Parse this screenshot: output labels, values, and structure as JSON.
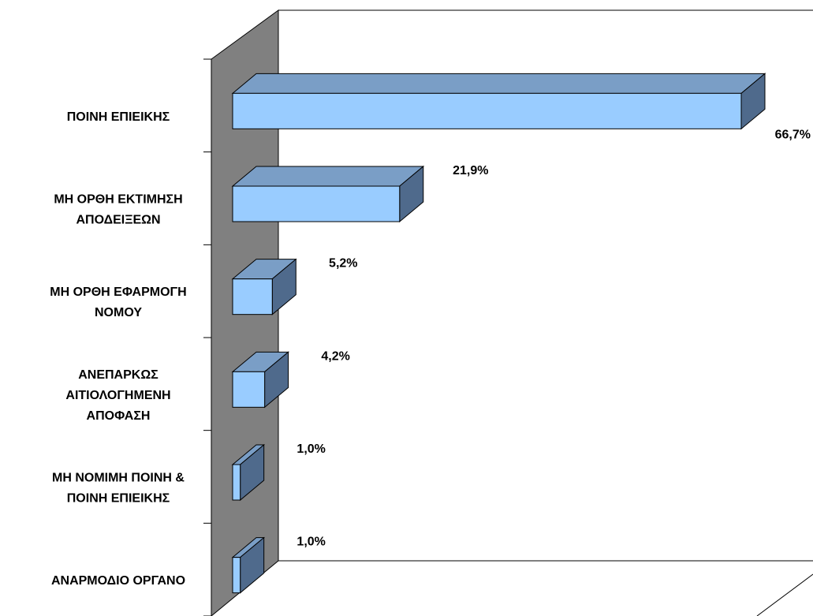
{
  "chart_data": {
    "type": "bar",
    "orientation": "horizontal",
    "three_d": true,
    "title": "",
    "xlabel": "",
    "ylabel": "",
    "categories": [
      [
        "ΠΟΙΝΗ ΕΠΙΕΙΚΗΣ"
      ],
      [
        "ΜΗ ΟΡΘΗ  ΕΚΤΙΜΗΣΗ",
        "ΑΠΟΔΕΙΞΕΩΝ"
      ],
      [
        "ΜΗ ΟΡΘΗ ΕΦΑΡΜΟΓΗ",
        "ΝΟΜΟΥ"
      ],
      [
        "ΑΝΕΠΑΡΚΩΣ",
        "ΑΙΤΙΟΛΟΓΗΜΕΝΗ",
        "ΑΠΟΦΑΣΗ"
      ],
      [
        "ΜΗ ΝΟΜΙΜΗ ΠΟΙΝΗ &",
        "ΠΟΙΝΗ ΕΠΙΕΙΚΗΣ"
      ],
      [
        "ΑΝΑΡΜΟΔΙΟ ΟΡΓΑΝΟ"
      ]
    ],
    "values": [
      66.7,
      21.9,
      5.2,
      4.2,
      1.0,
      1.0
    ],
    "value_labels": [
      "66,7%",
      "21,9%",
      "5,2%",
      "4,2%",
      "1,0%",
      "1,0%"
    ],
    "xlim": [
      0,
      70
    ],
    "grid": false,
    "legend": "none",
    "colors": {
      "bar_front": "#99CCFF",
      "bar_top": "#7A9EC6",
      "bar_side": "#4F6A8C",
      "wall": "#808080",
      "outline": "#000000"
    }
  }
}
